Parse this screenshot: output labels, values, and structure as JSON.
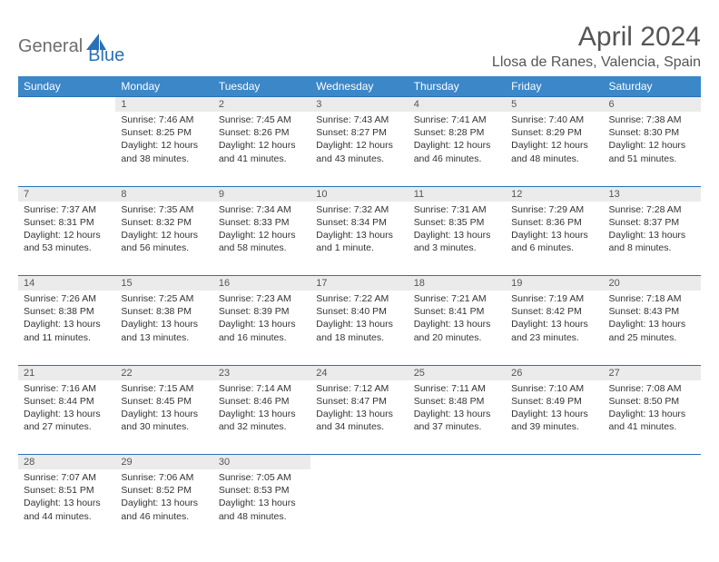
{
  "logo": {
    "general": "General",
    "blue": "Blue"
  },
  "title": "April 2024",
  "location": "Llosa de Ranes, Valencia, Spain",
  "colors": {
    "header_bg": "#3b87c8",
    "header_text": "#ffffff",
    "daynum_bg": "#ebebeb",
    "border": "#2a70b8",
    "text": "#333333",
    "title_text": "#555555"
  },
  "day_headers": [
    "Sunday",
    "Monday",
    "Tuesday",
    "Wednesday",
    "Thursday",
    "Friday",
    "Saturday"
  ],
  "weeks": [
    [
      null,
      {
        "n": "1",
        "sr": "7:46 AM",
        "ss": "8:25 PM",
        "dl": "12 hours and 38 minutes."
      },
      {
        "n": "2",
        "sr": "7:45 AM",
        "ss": "8:26 PM",
        "dl": "12 hours and 41 minutes."
      },
      {
        "n": "3",
        "sr": "7:43 AM",
        "ss": "8:27 PM",
        "dl": "12 hours and 43 minutes."
      },
      {
        "n": "4",
        "sr": "7:41 AM",
        "ss": "8:28 PM",
        "dl": "12 hours and 46 minutes."
      },
      {
        "n": "5",
        "sr": "7:40 AM",
        "ss": "8:29 PM",
        "dl": "12 hours and 48 minutes."
      },
      {
        "n": "6",
        "sr": "7:38 AM",
        "ss": "8:30 PM",
        "dl": "12 hours and 51 minutes."
      }
    ],
    [
      {
        "n": "7",
        "sr": "7:37 AM",
        "ss": "8:31 PM",
        "dl": "12 hours and 53 minutes."
      },
      {
        "n": "8",
        "sr": "7:35 AM",
        "ss": "8:32 PM",
        "dl": "12 hours and 56 minutes."
      },
      {
        "n": "9",
        "sr": "7:34 AM",
        "ss": "8:33 PM",
        "dl": "12 hours and 58 minutes."
      },
      {
        "n": "10",
        "sr": "7:32 AM",
        "ss": "8:34 PM",
        "dl": "13 hours and 1 minute."
      },
      {
        "n": "11",
        "sr": "7:31 AM",
        "ss": "8:35 PM",
        "dl": "13 hours and 3 minutes."
      },
      {
        "n": "12",
        "sr": "7:29 AM",
        "ss": "8:36 PM",
        "dl": "13 hours and 6 minutes."
      },
      {
        "n": "13",
        "sr": "7:28 AM",
        "ss": "8:37 PM",
        "dl": "13 hours and 8 minutes."
      }
    ],
    [
      {
        "n": "14",
        "sr": "7:26 AM",
        "ss": "8:38 PM",
        "dl": "13 hours and 11 minutes."
      },
      {
        "n": "15",
        "sr": "7:25 AM",
        "ss": "8:38 PM",
        "dl": "13 hours and 13 minutes."
      },
      {
        "n": "16",
        "sr": "7:23 AM",
        "ss": "8:39 PM",
        "dl": "13 hours and 16 minutes."
      },
      {
        "n": "17",
        "sr": "7:22 AM",
        "ss": "8:40 PM",
        "dl": "13 hours and 18 minutes."
      },
      {
        "n": "18",
        "sr": "7:21 AM",
        "ss": "8:41 PM",
        "dl": "13 hours and 20 minutes."
      },
      {
        "n": "19",
        "sr": "7:19 AM",
        "ss": "8:42 PM",
        "dl": "13 hours and 23 minutes."
      },
      {
        "n": "20",
        "sr": "7:18 AM",
        "ss": "8:43 PM",
        "dl": "13 hours and 25 minutes."
      }
    ],
    [
      {
        "n": "21",
        "sr": "7:16 AM",
        "ss": "8:44 PM",
        "dl": "13 hours and 27 minutes."
      },
      {
        "n": "22",
        "sr": "7:15 AM",
        "ss": "8:45 PM",
        "dl": "13 hours and 30 minutes."
      },
      {
        "n": "23",
        "sr": "7:14 AM",
        "ss": "8:46 PM",
        "dl": "13 hours and 32 minutes."
      },
      {
        "n": "24",
        "sr": "7:12 AM",
        "ss": "8:47 PM",
        "dl": "13 hours and 34 minutes."
      },
      {
        "n": "25",
        "sr": "7:11 AM",
        "ss": "8:48 PM",
        "dl": "13 hours and 37 minutes."
      },
      {
        "n": "26",
        "sr": "7:10 AM",
        "ss": "8:49 PM",
        "dl": "13 hours and 39 minutes."
      },
      {
        "n": "27",
        "sr": "7:08 AM",
        "ss": "8:50 PM",
        "dl": "13 hours and 41 minutes."
      }
    ],
    [
      {
        "n": "28",
        "sr": "7:07 AM",
        "ss": "8:51 PM",
        "dl": "13 hours and 44 minutes."
      },
      {
        "n": "29",
        "sr": "7:06 AM",
        "ss": "8:52 PM",
        "dl": "13 hours and 46 minutes."
      },
      {
        "n": "30",
        "sr": "7:05 AM",
        "ss": "8:53 PM",
        "dl": "13 hours and 48 minutes."
      },
      null,
      null,
      null,
      null
    ]
  ],
  "labels": {
    "sunrise": "Sunrise: ",
    "sunset": "Sunset: ",
    "daylight": "Daylight: "
  }
}
